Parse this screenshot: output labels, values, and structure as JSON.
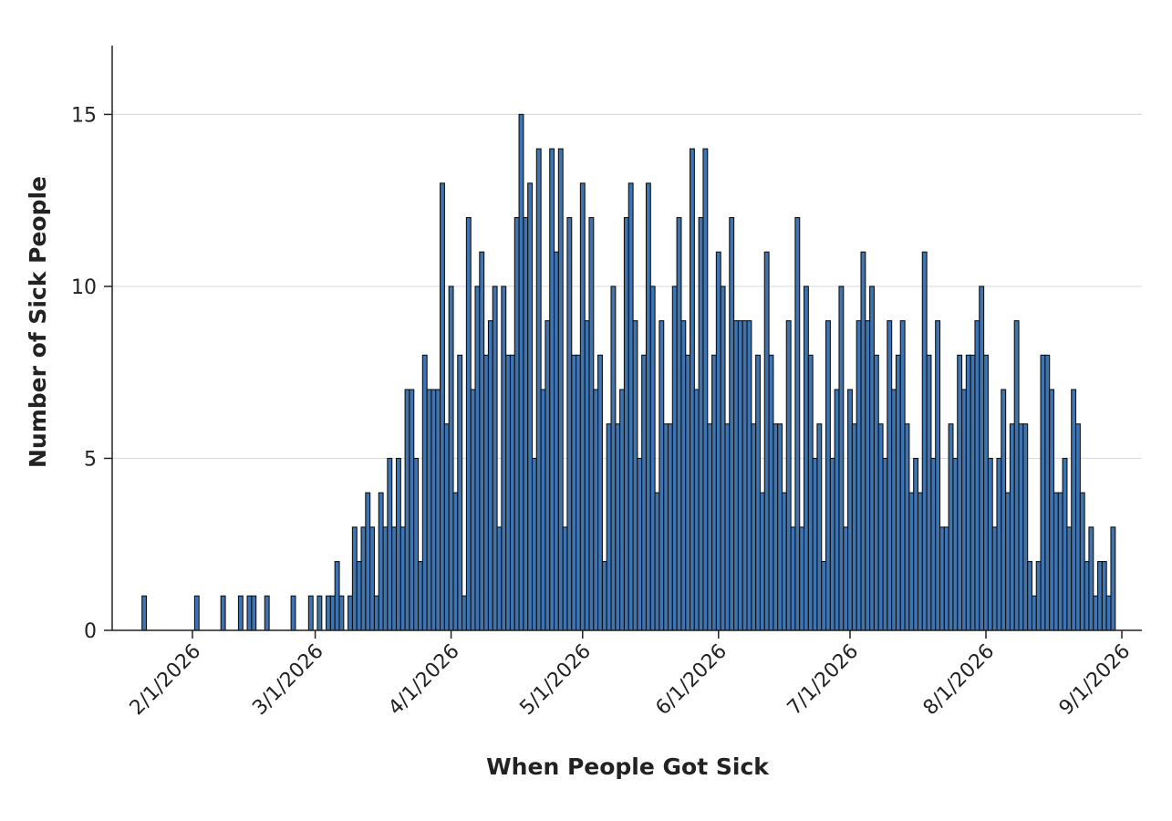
{
  "chart_data": {
    "type": "bar",
    "title": "",
    "xlabel": "When People Got Sick",
    "ylabel": "Number of Sick People",
    "x_start_date": "2026-01-21",
    "x_end_date": "2026-08-31",
    "ylim": [
      0,
      17
    ],
    "y_ticks": [
      0,
      5,
      10,
      15
    ],
    "x_ticks": [
      "2026-02-01",
      "2026-03-01",
      "2026-04-01",
      "2026-05-01",
      "2026-06-01",
      "2026-07-01",
      "2026-08-01",
      "2026-09-01"
    ],
    "x_tick_labels": [
      "2/1/2026",
      "3/1/2026",
      "4/1/2026",
      "5/1/2026",
      "6/1/2026",
      "7/1/2026",
      "8/1/2026",
      "9/1/2026"
    ],
    "grid": "horizontal",
    "bar_color": "#3d74b1",
    "bar_edge_color": "#111111",
    "values": [
      1,
      0,
      0,
      0,
      0,
      0,
      0,
      0,
      0,
      0,
      0,
      0,
      1,
      0,
      0,
      0,
      0,
      0,
      1,
      0,
      0,
      0,
      1,
      0,
      1,
      1,
      0,
      0,
      1,
      0,
      0,
      0,
      0,
      0,
      1,
      0,
      0,
      0,
      1,
      0,
      1,
      0,
      1,
      1,
      2,
      1,
      0,
      1,
      3,
      2,
      3,
      4,
      3,
      1,
      4,
      3,
      5,
      3,
      5,
      3,
      7,
      7,
      5,
      2,
      8,
      7,
      7,
      7,
      13,
      6,
      10,
      4,
      8,
      1,
      12,
      7,
      10,
      11,
      8,
      9,
      10,
      3,
      10,
      8,
      8,
      12,
      15,
      12,
      13,
      5,
      14,
      7,
      9,
      14,
      11,
      14,
      3,
      12,
      8,
      8,
      13,
      9,
      12,
      7,
      8,
      2,
      6,
      10,
      6,
      7,
      12,
      13,
      9,
      5,
      8,
      13,
      10,
      4,
      9,
      6,
      6,
      10,
      12,
      9,
      8,
      14,
      7,
      12,
      14,
      6,
      8,
      11,
      10,
      6,
      12,
      9,
      9,
      9,
      9,
      6,
      8,
      4,
      11,
      8,
      6,
      6,
      4,
      9,
      3,
      12,
      3,
      10,
      8,
      5,
      6,
      2,
      9,
      5,
      7,
      10,
      3,
      7,
      6,
      9,
      11,
      9,
      10,
      8,
      6,
      5,
      9,
      7,
      8,
      9,
      6,
      4,
      5,
      4,
      11,
      8,
      5,
      9,
      3,
      3,
      6,
      5,
      8,
      7,
      8,
      8,
      9,
      10,
      8,
      5,
      3,
      5,
      7,
      4,
      6,
      9,
      6,
      6,
      2,
      1,
      2,
      8,
      8,
      7,
      4,
      4,
      5,
      3,
      7,
      6,
      4,
      2,
      3,
      1,
      2,
      2,
      1,
      3
    ]
  }
}
